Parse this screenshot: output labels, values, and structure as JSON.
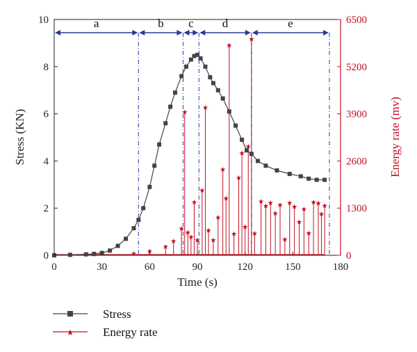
{
  "chart_data": {
    "type": "line",
    "xlabel": "Time (s)",
    "ylabel": "Stress (KN)",
    "y2label": "Energy rate (mv)",
    "xlim": [
      0,
      180
    ],
    "ylim": [
      0,
      10
    ],
    "y2lim": [
      0,
      6500
    ],
    "x_ticks": [
      0,
      30,
      60,
      90,
      120,
      150,
      180
    ],
    "y_ticks": [
      0,
      2,
      4,
      6,
      8,
      10
    ],
    "y2_ticks": [
      0,
      1300,
      2600,
      3900,
      5200,
      6500
    ],
    "grid": false,
    "legend_position": "bottom-left",
    "phases": [
      {
        "label": "a",
        "start": 0,
        "end": 53
      },
      {
        "label": "b",
        "start": 53,
        "end": 81
      },
      {
        "label": "c",
        "start": 81,
        "end": 91
      },
      {
        "label": "d",
        "start": 91,
        "end": 124
      },
      {
        "label": "e",
        "start": 124,
        "end": 173
      }
    ],
    "series": [
      {
        "name": "Stress",
        "axis": "left",
        "color": "#444444",
        "marker": "square",
        "x": [
          0,
          10,
          20,
          25,
          30,
          35,
          40,
          45,
          50,
          53,
          56,
          60,
          63,
          66,
          70,
          73,
          76,
          80,
          83,
          86,
          88,
          90,
          92,
          95,
          98,
          100,
          103,
          106,
          110,
          114,
          118,
          121,
          124,
          128,
          133,
          140,
          148,
          155,
          160,
          165,
          170
        ],
        "values": [
          0.0,
          0.02,
          0.04,
          0.06,
          0.1,
          0.2,
          0.4,
          0.7,
          1.15,
          1.5,
          2.0,
          2.9,
          3.8,
          4.7,
          5.6,
          6.3,
          6.9,
          7.6,
          8.0,
          8.3,
          8.45,
          8.5,
          8.35,
          8.0,
          7.55,
          7.3,
          7.0,
          6.65,
          6.1,
          5.5,
          4.9,
          4.45,
          4.3,
          4.0,
          3.8,
          3.6,
          3.45,
          3.35,
          3.25,
          3.2,
          3.2
        ]
      },
      {
        "name": "Energy rate",
        "axis": "right",
        "color": "#c4101f",
        "marker": "star",
        "x": [
          25,
          50,
          60,
          70,
          75,
          80,
          82,
          84,
          86,
          88,
          90,
          93,
          95,
          97,
          100,
          103,
          106,
          108,
          110,
          113,
          116,
          118,
          120,
          122,
          124,
          126,
          130,
          133,
          136,
          139,
          142,
          145,
          148,
          151,
          154,
          157,
          160,
          163,
          166,
          168,
          170
        ],
        "values": [
          40,
          60,
          120,
          250,
          400,
          750,
          3960,
          640,
          520,
          1480,
          430,
          1800,
          4080,
          700,
          430,
          1050,
          2380,
          1580,
          5800,
          600,
          2150,
          2830,
          800,
          3010,
          5970,
          610,
          1500,
          1370,
          1460,
          1170,
          1400,
          450,
          1460,
          1350,
          930,
          1280,
          620,
          1480,
          1450,
          1150,
          1380
        ]
      }
    ]
  }
}
